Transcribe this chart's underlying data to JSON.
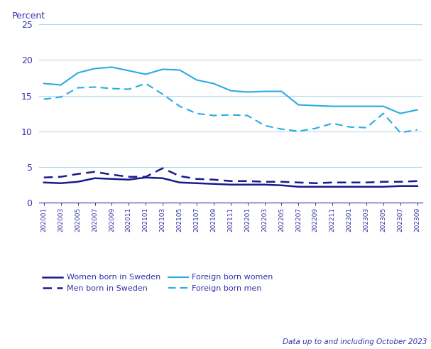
{
  "x_labels": [
    "202001",
    "202003",
    "202005",
    "202007",
    "202009",
    "202011",
    "202101",
    "202103",
    "202105",
    "202107",
    "202109",
    "202111",
    "202201",
    "202203",
    "202205",
    "202207",
    "202209",
    "202211",
    "202301",
    "202303",
    "202305",
    "202307",
    "202309"
  ],
  "women_born_sweden": [
    2.8,
    2.7,
    2.9,
    3.4,
    3.3,
    3.2,
    3.5,
    3.4,
    2.8,
    2.7,
    2.6,
    2.5,
    2.5,
    2.5,
    2.4,
    2.2,
    2.2,
    2.2,
    2.2,
    2.2,
    2.2,
    2.3,
    2.3
  ],
  "men_born_sweden": [
    3.5,
    3.6,
    4.0,
    4.3,
    3.9,
    3.6,
    3.6,
    4.8,
    3.7,
    3.3,
    3.2,
    3.0,
    3.0,
    2.9,
    2.9,
    2.8,
    2.7,
    2.8,
    2.8,
    2.8,
    2.9,
    2.9,
    3.0
  ],
  "foreign_born_women": [
    16.7,
    16.5,
    18.2,
    18.8,
    19.0,
    18.5,
    18.0,
    18.7,
    18.6,
    17.2,
    16.7,
    15.7,
    15.5,
    15.6,
    15.6,
    13.7,
    13.6,
    13.5,
    13.5,
    13.5,
    13.5,
    12.5,
    13.0
  ],
  "foreign_born_men": [
    14.5,
    14.8,
    16.1,
    16.2,
    16.0,
    15.9,
    16.7,
    15.2,
    13.5,
    12.5,
    12.2,
    12.3,
    12.2,
    10.8,
    10.3,
    10.0,
    10.4,
    11.1,
    10.6,
    10.5,
    12.5,
    9.8,
    10.2
  ],
  "color_dark_blue": "#1a1a8c",
  "color_light_blue": "#29abe2",
  "ylabel": "Percent",
  "ylim": [
    0,
    25
  ],
  "yticks": [
    0,
    5,
    10,
    15,
    20,
    25
  ],
  "footnote": "Data up to and including October 2023",
  "bg_color": "#ffffff",
  "grid_color": "#b8d8ea",
  "text_color": "#3333aa"
}
